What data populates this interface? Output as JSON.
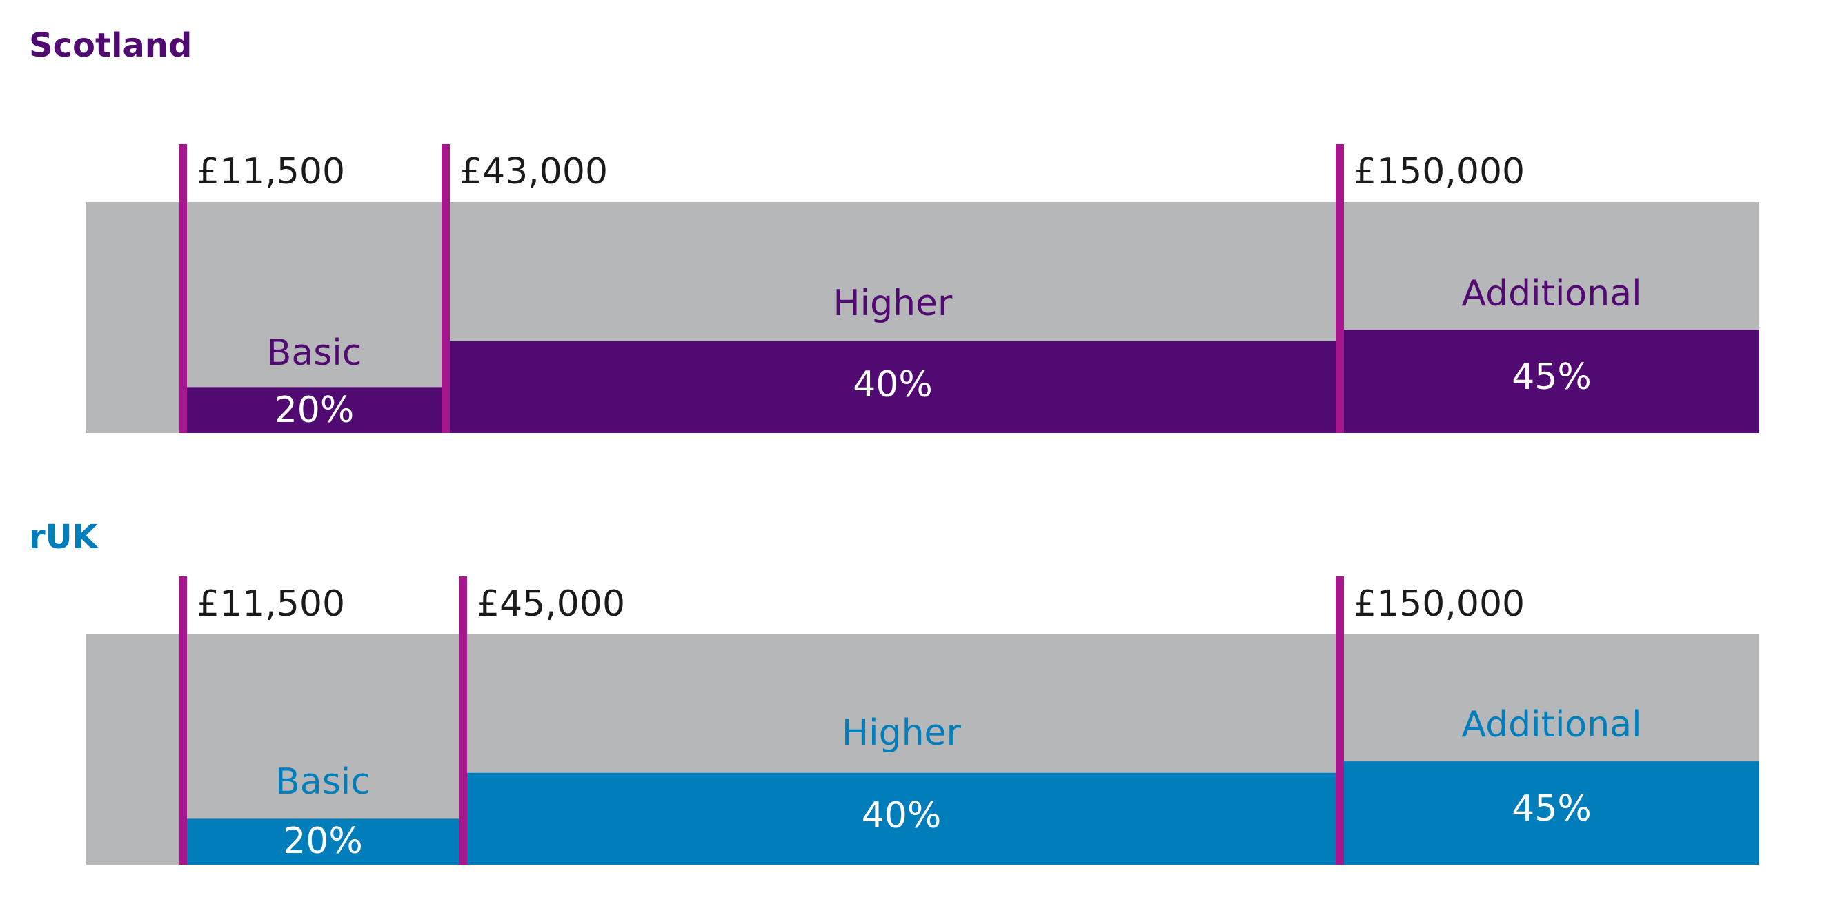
{
  "colors": {
    "track": "#b6b7b9",
    "marker": "#a6168c",
    "scotland": "#520a73",
    "ruk": "#007dbb",
    "threshold_text": "#1a1a1a"
  },
  "chart_data": [
    {
      "type": "bar",
      "title": "Scotland",
      "color_key": "scotland",
      "thresholds": [
        "£11,500",
        "£43,000",
        "£150,000"
      ],
      "bands": [
        {
          "name": "Basic",
          "rate": "20%",
          "value": 20
        },
        {
          "name": "Higher",
          "rate": "40%",
          "value": 40
        },
        {
          "name": "Additional",
          "rate": "45%",
          "value": 45
        }
      ]
    },
    {
      "type": "bar",
      "title": "rUK",
      "color_key": "ruk",
      "thresholds": [
        "£11,500",
        "£45,000",
        "£150,000"
      ],
      "bands": [
        {
          "name": "Basic",
          "rate": "20%",
          "value": 20
        },
        {
          "name": "Higher",
          "rate": "40%",
          "value": 40
        },
        {
          "name": "Additional",
          "rate": "45%",
          "value": 45
        }
      ]
    }
  ]
}
